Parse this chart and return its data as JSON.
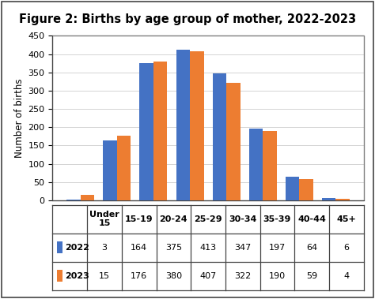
{
  "title": "Figure 2: Births by age group of mother, 2022-2023",
  "ylabel": "Number of births",
  "categories": [
    "Under\n15",
    "15-19",
    "20-24",
    "25-29",
    "30-34",
    "35-39",
    "40-44",
    "45+"
  ],
  "values_2022": [
    3,
    164,
    375,
    413,
    347,
    197,
    64,
    6
  ],
  "values_2023": [
    15,
    176,
    380,
    407,
    322,
    190,
    59,
    4
  ],
  "color_2022": "#4472C4",
  "color_2023": "#ED7D31",
  "ylim": [
    0,
    450
  ],
  "yticks": [
    0,
    50,
    100,
    150,
    200,
    250,
    300,
    350,
    400,
    450
  ],
  "bar_width": 0.38,
  "background_color": "#ffffff",
  "grid_color": "#cccccc",
  "border_color": "#444444",
  "title_fontsize": 10.5,
  "axis_label_fontsize": 8.5,
  "tick_fontsize": 8,
  "table_fontsize": 8
}
